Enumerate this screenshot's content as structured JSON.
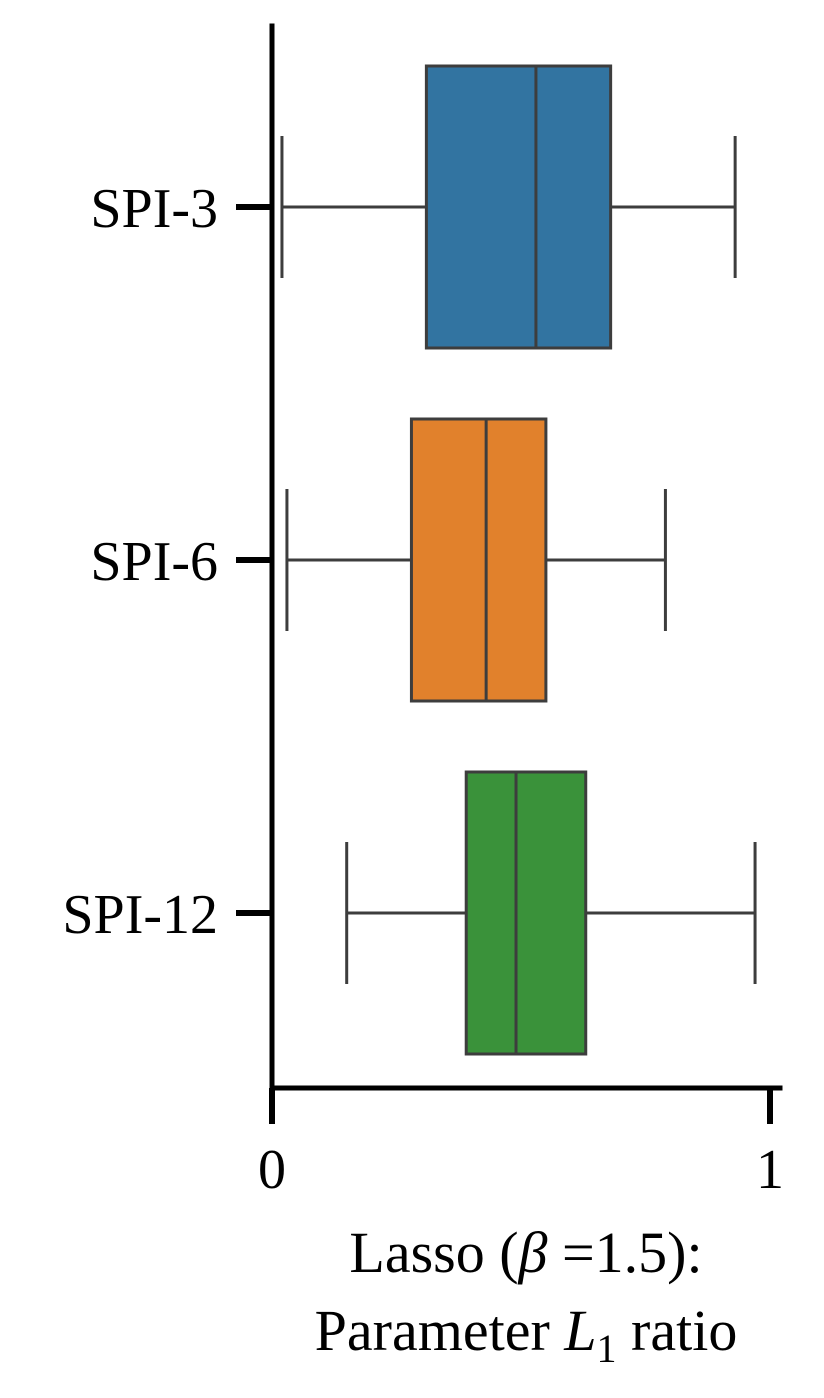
{
  "chart_data": {
    "type": "boxplot",
    "orientation": "horizontal",
    "categories": [
      "SPI-3",
      "SPI-6",
      "SPI-12"
    ],
    "colors": [
      "#3274a1",
      "#e1812c",
      "#3a923a"
    ],
    "boxes": [
      {
        "label": "SPI-3",
        "whisker_low": 0.02,
        "q1": 0.31,
        "median": 0.53,
        "q3": 0.68,
        "whisker_high": 0.93
      },
      {
        "label": "SPI-6",
        "whisker_low": 0.03,
        "q1": 0.28,
        "median": 0.43,
        "q3": 0.55,
        "whisker_high": 0.79
      },
      {
        "label": "SPI-12",
        "whisker_low": 0.15,
        "q1": 0.39,
        "median": 0.49,
        "q3": 0.63,
        "whisker_high": 0.97
      }
    ],
    "xlim": [
      0,
      1
    ],
    "xticks": [
      "0",
      "1"
    ],
    "xlabel_line1_pre": "Lasso (",
    "xlabel_beta": "β",
    "xlabel_line1_post": " =1.5):",
    "xlabel_line2_pre": "Parameter ",
    "xlabel_L": "L",
    "xlabel_sub": "1",
    "xlabel_line2_post": " ratio",
    "grid": false
  }
}
